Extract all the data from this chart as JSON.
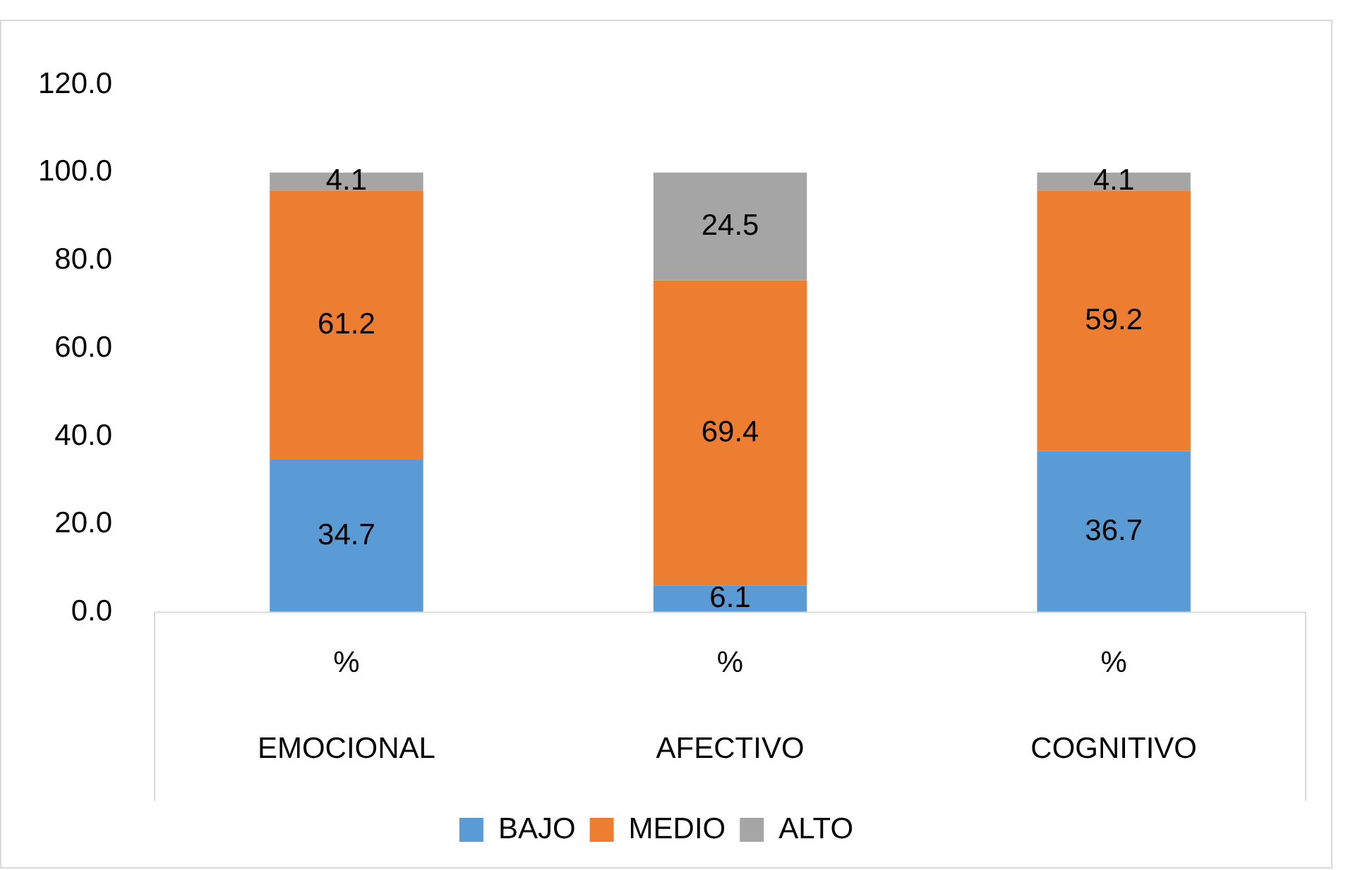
{
  "chart_data": {
    "type": "bar",
    "stacked": true,
    "categories": [
      "EMOCIONAL",
      "AFECTIVO",
      "COGNITIVO"
    ],
    "series": [
      {
        "name": "BAJO",
        "color": "#5b9bd5",
        "values": [
          34.7,
          6.1,
          36.7
        ]
      },
      {
        "name": "MEDIO",
        "color": "#ed7d31",
        "values": [
          61.2,
          69.4,
          59.2
        ]
      },
      {
        "name": "ALTO",
        "color": "#a5a5a5",
        "values": [
          4.1,
          24.5,
          4.1
        ]
      }
    ],
    "ylim": [
      0,
      120
    ],
    "yticks": [
      {
        "value": 0,
        "label": "0.0"
      },
      {
        "value": 20,
        "label": "20.0"
      },
      {
        "value": 40,
        "label": "40.0"
      },
      {
        "value": 60,
        "label": "60.0"
      },
      {
        "value": 80,
        "label": "80.0"
      },
      {
        "value": 100,
        "label": "100.0"
      },
      {
        "value": 120,
        "label": "120.0"
      }
    ],
    "annotations": [
      "%",
      "%",
      "%"
    ],
    "data_labels": true,
    "grid": false,
    "legend": "bottom"
  }
}
